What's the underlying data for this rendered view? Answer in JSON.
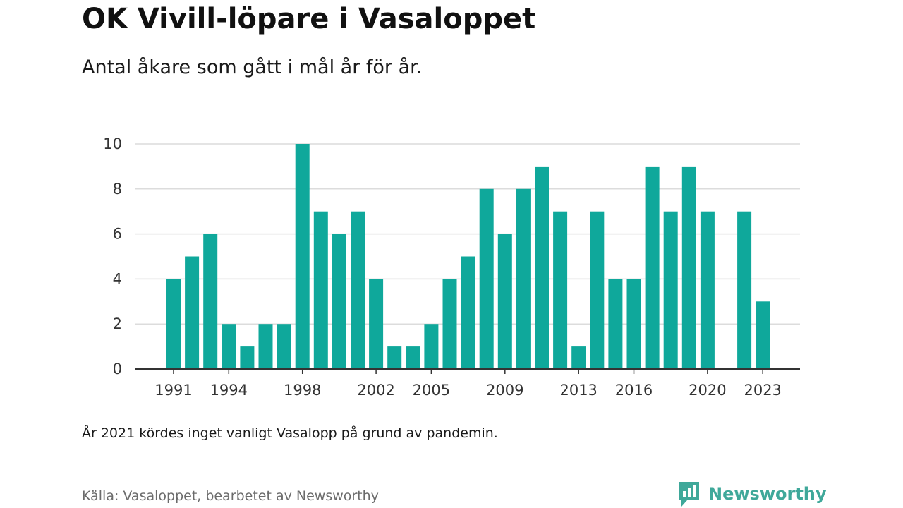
{
  "title": "OK Vivill-löpare i Vasaloppet",
  "subtitle": "Antal åkare som gått i mål år för år.",
  "note": "År 2021 kördes inget vanligt Vasalopp på grund av pandemin.",
  "source": "Källa: Vasaloppet, bearbetet av Newsworthy",
  "logo": {
    "text": "Newsworthy",
    "icon": "bar-chart-speech-bubble-icon"
  },
  "colors": {
    "bar": "#0fa89b",
    "grid": "#dcdcdc",
    "axis": "#333333",
    "logo": "#3fa89a"
  },
  "chart_data": {
    "type": "bar",
    "title": "OK Vivill-löpare i Vasaloppet",
    "subtitle": "Antal åkare som gått i mål år för år.",
    "xlabel": "",
    "ylabel": "",
    "categories": [
      "1991",
      "1992",
      "1993",
      "1994",
      "1995",
      "1996",
      "1997",
      "1998",
      "1999",
      "2000",
      "2001",
      "2002",
      "2003",
      "2004",
      "2005",
      "2006",
      "2007",
      "2008",
      "2009",
      "2010",
      "2011",
      "2012",
      "2013",
      "2014",
      "2015",
      "2016",
      "2017",
      "2018",
      "2019",
      "2020",
      "2021",
      "2022",
      "2023"
    ],
    "values": [
      4,
      5,
      6,
      2,
      1,
      2,
      2,
      10,
      7,
      6,
      7,
      4,
      1,
      1,
      2,
      4,
      5,
      8,
      6,
      8,
      9,
      7,
      1,
      7,
      4,
      4,
      9,
      7,
      9,
      7,
      0,
      7,
      3
    ],
    "x_tick_labels": [
      "1991",
      "1994",
      "1998",
      "2002",
      "2005",
      "2009",
      "2013",
      "2016",
      "2020",
      "2023"
    ],
    "y_ticks": [
      0,
      2,
      4,
      6,
      8,
      10
    ],
    "ylim": [
      0,
      10
    ],
    "grid": true,
    "legend": "none"
  }
}
